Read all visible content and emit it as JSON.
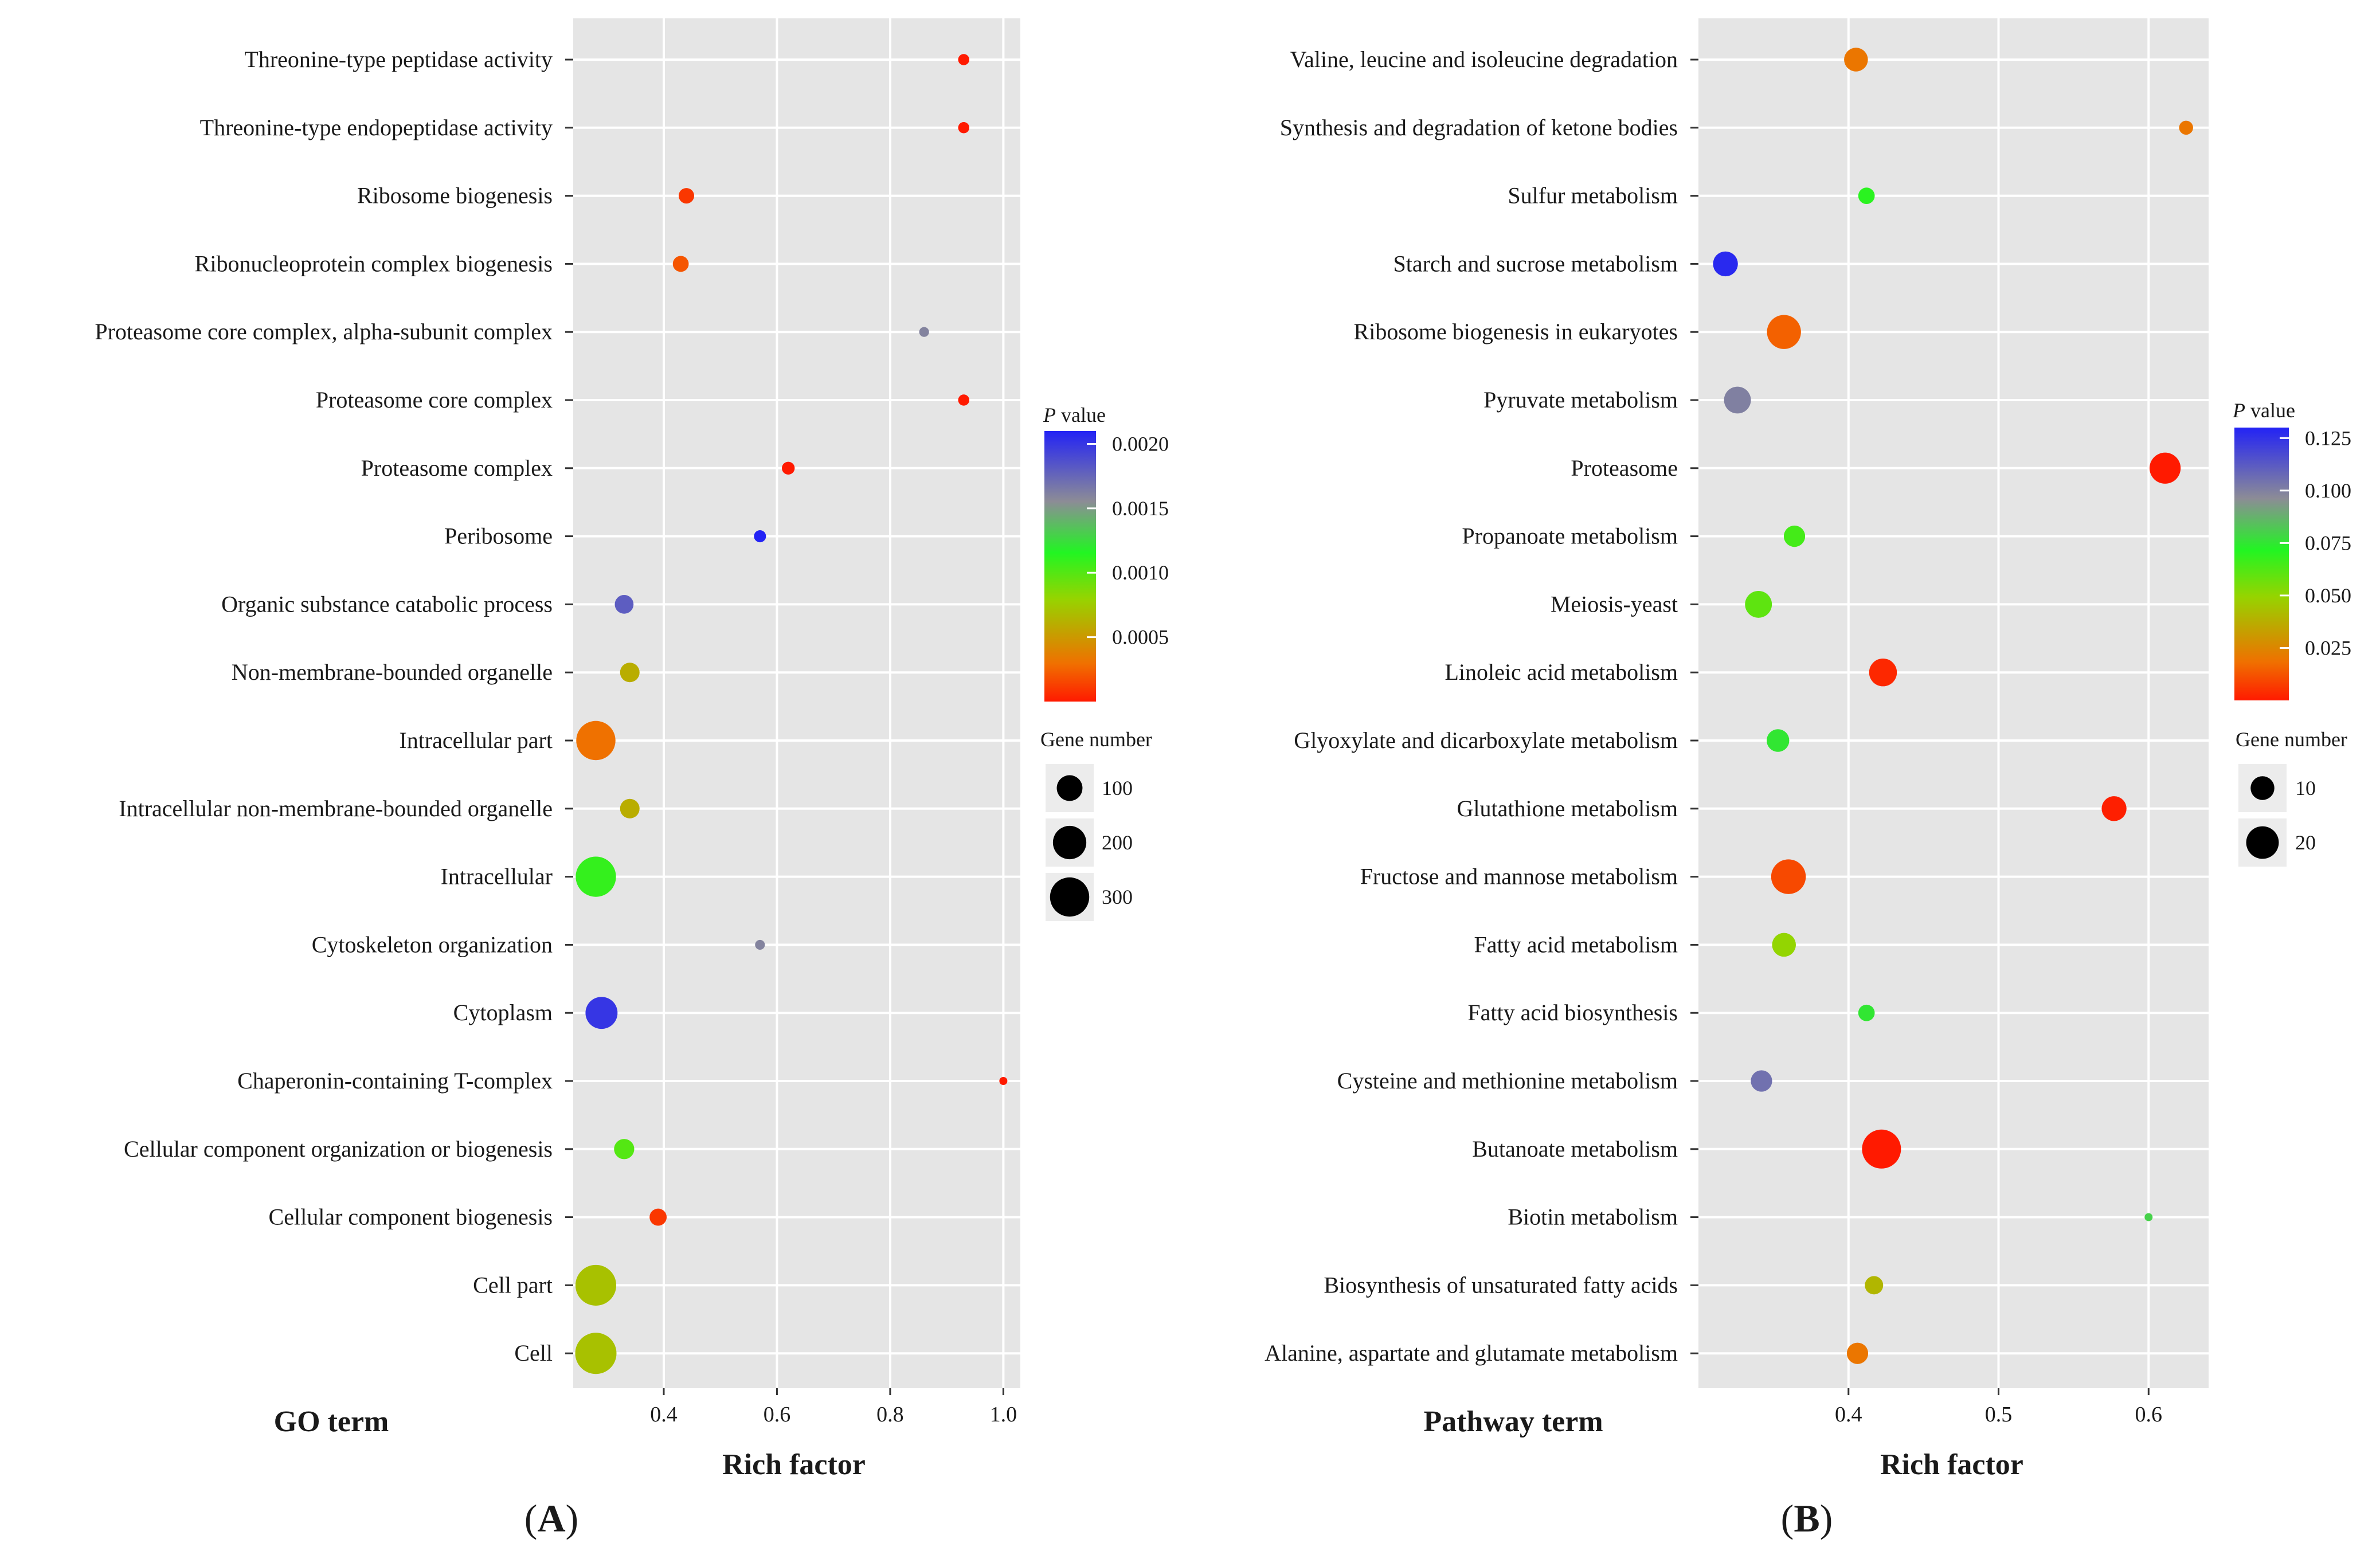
{
  "chart_data": [
    {
      "panel": "A",
      "panel_tag": {
        "open": "(",
        "letter": "A",
        "close": ")"
      },
      "type": "scatter",
      "y_title": "GO term",
      "xlabel": "Rich factor",
      "xlim": [
        0.24,
        1.03
      ],
      "xticks": [
        0.4,
        0.6,
        0.8,
        1.0
      ],
      "xtick_labels": [
        "0.4",
        "0.6",
        "0.8",
        "1.0"
      ],
      "categories": [
        "Threonine-type peptidase activity",
        "Threonine-type endopeptidase activity",
        "Ribosome biogenesis",
        "Ribonucleoprotein complex biogenesis",
        "Proteasome core complex, alpha-subunit complex",
        "Proteasome core complex",
        "Proteasome complex",
        "Peribosome",
        "Organic substance catabolic process",
        "Non-membrane-bounded organelle",
        "Intracellular part",
        "Intracellular non-membrane-bounded organelle",
        "Intracellular",
        "Cytoskeleton organization",
        "Cytoplasm",
        "Chaperonin-containing T-complex",
        "Cellular component organization or biogenesis",
        "Cellular component biogenesis",
        "Cell part",
        "Cell"
      ],
      "rich_factor": [
        0.93,
        0.93,
        0.44,
        0.43,
        0.86,
        0.93,
        0.62,
        0.57,
        0.33,
        0.34,
        0.28,
        0.34,
        0.28,
        0.57,
        0.29,
        1.0,
        0.33,
        0.39,
        0.28,
        0.28
      ],
      "gene_number": [
        8,
        8,
        22,
        24,
        6,
        8,
        12,
        10,
        40,
        45,
        300,
        45,
        320,
        6,
        180,
        5,
        50,
        30,
        330,
        340
      ],
      "p_value": [
        0.0,
        0.0,
        0.0001,
        0.0002,
        0.0016,
        0.0,
        0.0,
        0.0021,
        0.0018,
        0.0006,
        0.0003,
        0.0006,
        0.0011,
        0.0016,
        0.002,
        0.0,
        0.001,
        0.0001,
        0.0007,
        0.0007
      ],
      "legend": {
        "color_title_italic": "P",
        "color_title_rest": " value",
        "color_range": [
          0.0,
          0.0021
        ],
        "color_ticks": [
          0.0005,
          0.001,
          0.0015,
          0.002
        ],
        "color_tick_labels": [
          "0.0005",
          "0.0010",
          "0.0015",
          "0.0020"
        ],
        "size_title": "Gene number",
        "size_values": [
          100,
          200,
          300
        ],
        "size_labels": [
          "100",
          "200",
          "300"
        ]
      }
    },
    {
      "panel": "B",
      "panel_tag": {
        "open": "(",
        "letter": "B",
        "close": ")"
      },
      "type": "scatter",
      "y_title": "Pathway term",
      "xlabel": "Rich factor",
      "xlim": [
        0.3,
        0.64
      ],
      "xticks": [
        0.4,
        0.5,
        0.6
      ],
      "xtick_labels": [
        "0.4",
        "0.5",
        "0.6"
      ],
      "categories": [
        "Valine, leucine and isoleucine degradation",
        "Synthesis and degradation of ketone bodies",
        "Sulfur metabolism",
        "Starch and sucrose metabolism",
        "Ribosome biogenesis in eukaryotes",
        "Pyruvate metabolism",
        "Proteasome",
        "Propanoate metabolism",
        "Meiosis-yeast",
        "Linoleic acid metabolism",
        "Glyoxylate and dicarboxylate metabolism",
        "Glutathione metabolism",
        "Fructose and mannose metabolism",
        "Fatty acid metabolism",
        "Fatty acid biosynthesis",
        "Cysteine and methionine metabolism",
        "Butanoate metabolism",
        "Biotin metabolism",
        "Biosynthesis of unsaturated fatty acids",
        "Alanine, aspartate and glutamate metabolism"
      ],
      "rich_factor": [
        0.405,
        0.625,
        0.412,
        0.318,
        0.357,
        0.326,
        0.611,
        0.364,
        0.34,
        0.423,
        0.353,
        0.577,
        0.36,
        0.357,
        0.412,
        0.342,
        0.422,
        0.6,
        0.417,
        0.406
      ],
      "gene_number": [
        10,
        4,
        5,
        11,
        22,
        13,
        18,
        8,
        13,
        14,
        9,
        11,
        23,
        10,
        5,
        8,
        30,
        3,
        6,
        8
      ],
      "p_value": [
        0.02,
        0.02,
        0.07,
        0.128,
        0.015,
        0.1,
        0.0,
        0.065,
        0.06,
        0.003,
        0.075,
        0.001,
        0.01,
        0.05,
        0.075,
        0.105,
        0.0,
        0.08,
        0.04,
        0.02
      ],
      "legend": {
        "color_title_italic": "P",
        "color_title_rest": " value",
        "color_range": [
          0.0,
          0.13
        ],
        "color_ticks": [
          0.025,
          0.05,
          0.075,
          0.1,
          0.125
        ],
        "color_tick_labels": [
          "0.025",
          "0.050",
          "0.075",
          "0.100",
          "0.125"
        ],
        "size_title": "Gene number",
        "size_values": [
          10,
          20
        ],
        "size_labels": [
          "10",
          "20"
        ]
      }
    }
  ],
  "colors": {
    "panel_bg": "#e5e5e5",
    "grid": "#ffffff",
    "gradient": [
      "#ff1a00",
      "#f07000",
      "#96d400",
      "#22f522",
      "#8c8c96",
      "#2323f5"
    ]
  }
}
